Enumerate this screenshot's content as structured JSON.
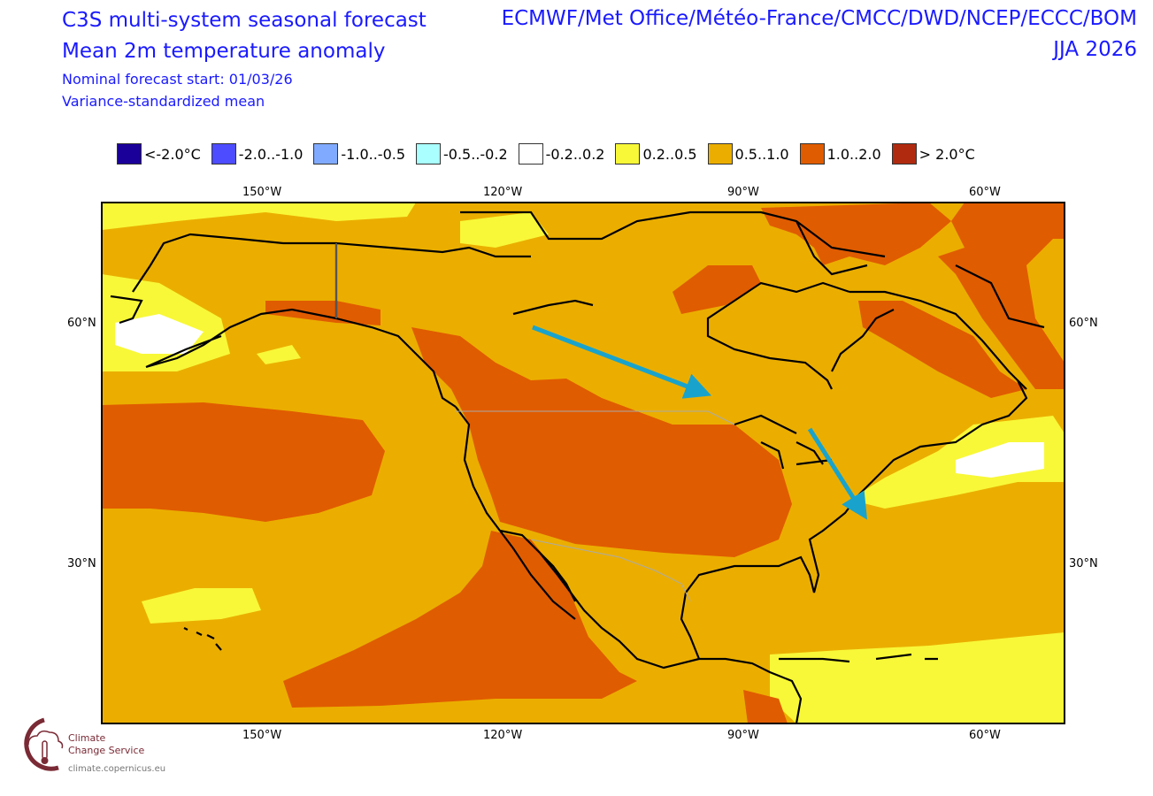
{
  "header": {
    "title": "C3S multi-system seasonal forecast",
    "subtitle": "Mean 2m temperature anomaly",
    "forecast_start": "Nominal forecast start: 01/03/26",
    "method": "Variance-standardized mean",
    "systems": "ECMWF/Met Office/Météo-France/CMCC/DWD/NCEP/ECCC/BOM",
    "season": "JJA 2026"
  },
  "legend": [
    {
      "label": "<-2.0°C",
      "color": "#1a0099"
    },
    {
      "label": "-2.0..-1.0",
      "color": "#4d4dff"
    },
    {
      "label": "-1.0..-0.5",
      "color": "#80aaff"
    },
    {
      "label": "-0.5..-0.2",
      "color": "#aaffff"
    },
    {
      "label": "-0.2..0.2",
      "color": "#ffffff"
    },
    {
      "label": "0.2..0.5",
      "color": "#f8f838"
    },
    {
      "label": "0.5..1.0",
      "color": "#ebae00"
    },
    {
      "label": "1.0..2.0",
      "color": "#e05c00"
    },
    {
      "label": "> 2.0°C",
      "color": "#b02a10"
    }
  ],
  "axes": {
    "lon_labels": [
      "150°W",
      "120°W",
      "90°W",
      "60°W"
    ],
    "lat_labels": [
      "60°N",
      "30°N"
    ]
  },
  "annotations": {
    "arrow_color": "#19a3cc"
  },
  "logo": {
    "name_line1": "Climate",
    "name_line2": "Change Service",
    "url": "climate.copernicus.eu"
  }
}
